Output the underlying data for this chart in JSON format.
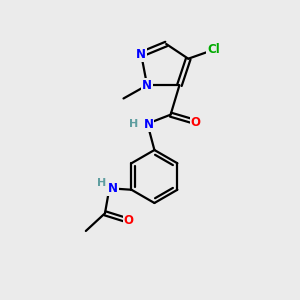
{
  "bg_color": "#ebebeb",
  "atom_colors": {
    "N": "#0000ff",
    "O": "#ff0000",
    "Cl": "#00aa00",
    "C": "#000000",
    "H": "#5f9ea0"
  },
  "figsize": [
    3.0,
    3.0
  ],
  "dpi": 100
}
